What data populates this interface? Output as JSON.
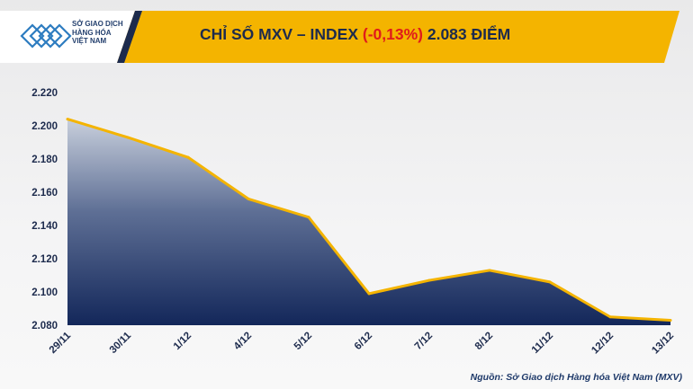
{
  "header": {
    "logo_lines": [
      "SỞ GIAO DỊCH",
      "HÀNG HÓA",
      "VIỆT NAM"
    ],
    "title_prefix": "CHỈ SỐ MXV – INDEX ",
    "title_change": "(-0,13%)",
    "title_suffix": " 2.083 ĐIỂM",
    "banner_color": "#f4b400",
    "change_color": "#e01b1b"
  },
  "source": "Nguồn: Sở Giao dịch Hàng hóa Việt Nam (MXV)",
  "chart_data": {
    "type": "area",
    "categories": [
      "29/11",
      "30/11",
      "1/12",
      "4/12",
      "5/12",
      "6/12",
      "7/12",
      "8/12",
      "11/12",
      "12/12",
      "13/12"
    ],
    "values": [
      2204,
      2193,
      2181,
      2156,
      2145,
      2099,
      2107,
      2113,
      2106,
      2085,
      2083
    ],
    "yticks": [
      "2.080",
      "2.100",
      "2.120",
      "2.140",
      "2.160",
      "2.180",
      "2.200",
      "2.220"
    ],
    "ylim": [
      2080,
      2220
    ],
    "grid": false,
    "line_color": "#f4b400",
    "fill_top": "#c8cfdc",
    "fill_bottom": "#13275a"
  }
}
